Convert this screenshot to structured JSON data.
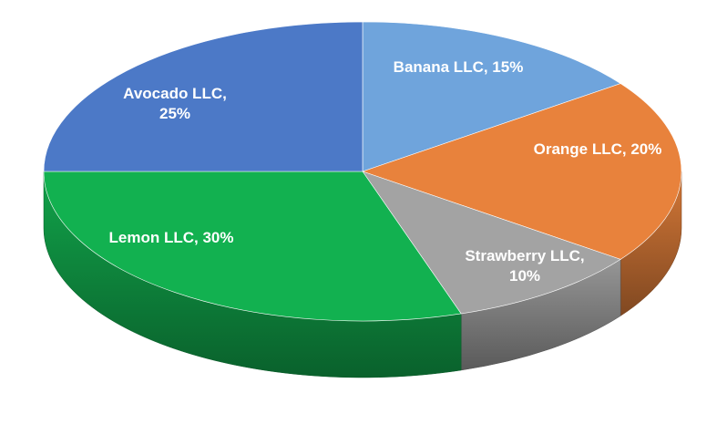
{
  "chart_data": {
    "type": "pie",
    "title": "",
    "slices": [
      {
        "label": "Banana LLC",
        "value": 15,
        "color": "#6fa4dc"
      },
      {
        "label": "Orange LLC",
        "value": 20,
        "color": "#e8823c"
      },
      {
        "label": "Strawberry LLC",
        "value": 10,
        "color": "#a3a3a3"
      },
      {
        "label": "Lemon LLC",
        "value": 30,
        "color": "#12b150"
      },
      {
        "label": "Avocado LLC",
        "value": 25,
        "color": "#4c79c7"
      }
    ],
    "label_text": [
      [
        "Banana LLC, 15%"
      ],
      [
        "Orange LLC, 20%"
      ],
      [
        "Strawberry LLC,",
        "10%"
      ],
      [
        "Lemon LLC, 30%"
      ],
      [
        "Avocado LLC,",
        "25%"
      ]
    ],
    "start": "12 o'clock",
    "direction": "clockwise",
    "style": "3D",
    "legend": "none"
  }
}
